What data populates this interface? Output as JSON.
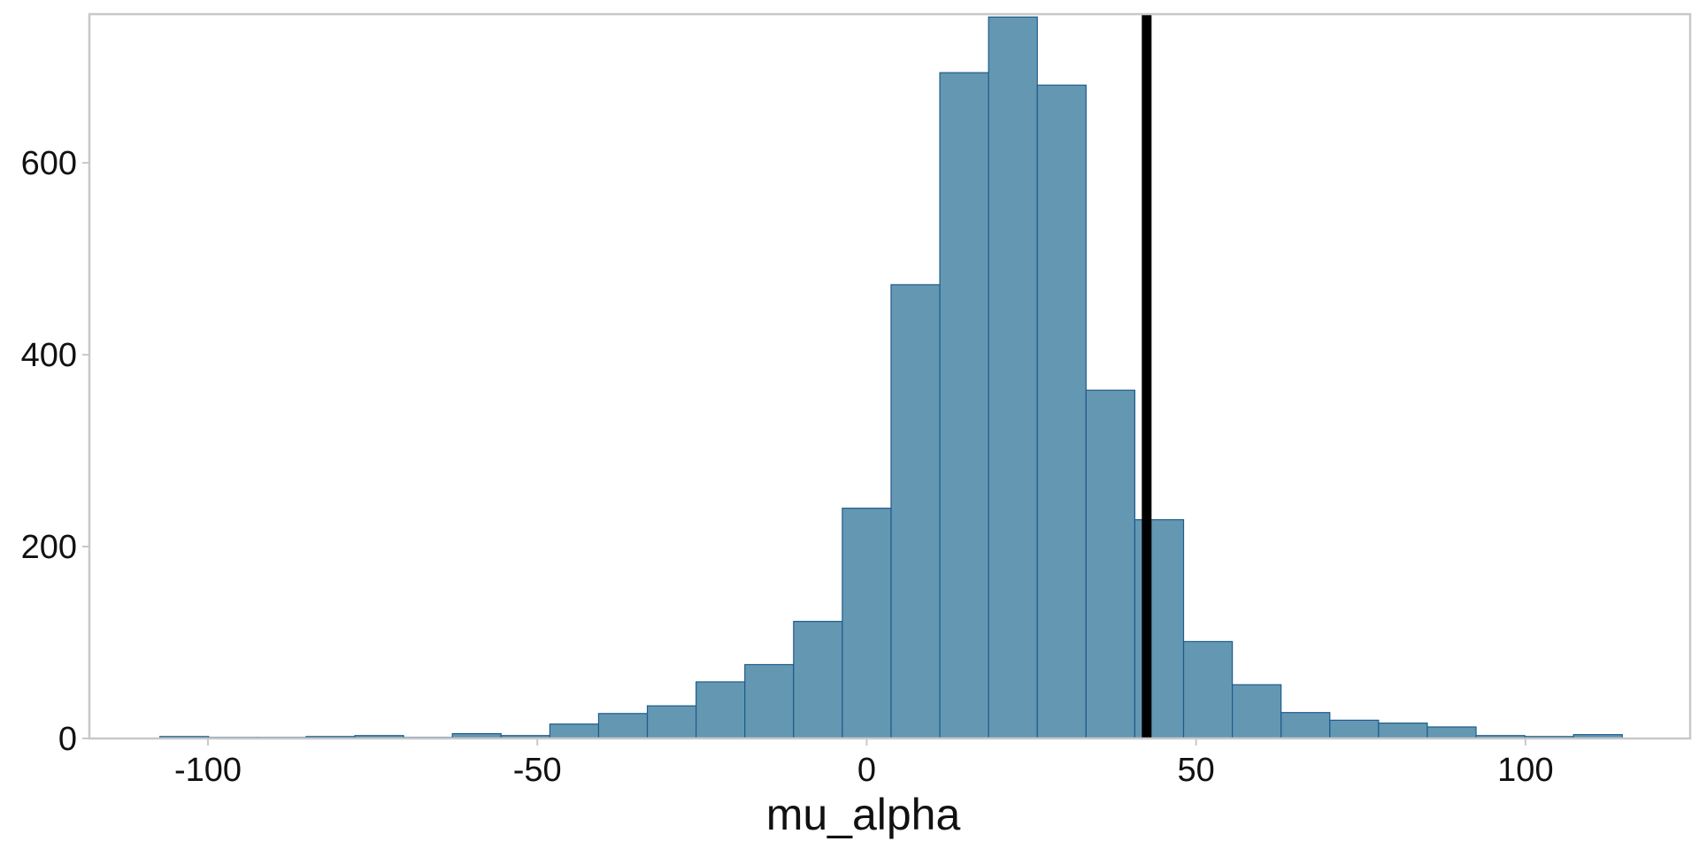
{
  "chart_data": {
    "type": "bar",
    "subtype": "histogram",
    "title": "",
    "xlabel": "mu_alpha",
    "ylabel": "",
    "xlim": [
      -118,
      125
    ],
    "ylim": [
      0,
      755
    ],
    "bin_width": 7.4,
    "bins": [
      {
        "x0": -107.3,
        "count": 2
      },
      {
        "x0": -99.9,
        "count": 1
      },
      {
        "x0": -92.5,
        "count": 1
      },
      {
        "x0": -85.1,
        "count": 2
      },
      {
        "x0": -77.7,
        "count": 3
      },
      {
        "x0": -70.3,
        "count": 1
      },
      {
        "x0": -62.9,
        "count": 5
      },
      {
        "x0": -55.5,
        "count": 3
      },
      {
        "x0": -48.1,
        "count": 15
      },
      {
        "x0": -40.7,
        "count": 26
      },
      {
        "x0": -33.3,
        "count": 34
      },
      {
        "x0": -25.9,
        "count": 59
      },
      {
        "x0": -18.5,
        "count": 77
      },
      {
        "x0": -11.1,
        "count": 122
      },
      {
        "x0": -3.7,
        "count": 240
      },
      {
        "x0": 3.7,
        "count": 473
      },
      {
        "x0": 11.1,
        "count": 694
      },
      {
        "x0": 18.5,
        "count": 752
      },
      {
        "x0": 25.9,
        "count": 681
      },
      {
        "x0": 33.3,
        "count": 363
      },
      {
        "x0": 40.7,
        "count": 228
      },
      {
        "x0": 48.1,
        "count": 101
      },
      {
        "x0": 55.5,
        "count": 56
      },
      {
        "x0": 62.9,
        "count": 27
      },
      {
        "x0": 70.3,
        "count": 19
      },
      {
        "x0": 77.7,
        "count": 16
      },
      {
        "x0": 85.1,
        "count": 12
      },
      {
        "x0": 92.5,
        "count": 3
      },
      {
        "x0": 99.9,
        "count": 2
      },
      {
        "x0": 107.3,
        "count": 4
      }
    ],
    "vline": 42.5,
    "x_ticks": [
      {
        "value": -100,
        "label": "-100"
      },
      {
        "value": -50,
        "label": "-50"
      },
      {
        "value": 0,
        "label": "0"
      },
      {
        "value": 50,
        "label": "50"
      },
      {
        "value": 100,
        "label": "100"
      }
    ],
    "y_ticks": [
      {
        "value": 0,
        "label": "0"
      },
      {
        "value": 200,
        "label": "200"
      },
      {
        "value": 400,
        "label": "400"
      },
      {
        "value": 600,
        "label": "600"
      }
    ],
    "grid": false,
    "colors": {
      "bar_fill": "#6497b1",
      "bar_stroke": "#1e5c8c",
      "vline": "#000000",
      "panel_border": "#c8c8c8"
    }
  }
}
